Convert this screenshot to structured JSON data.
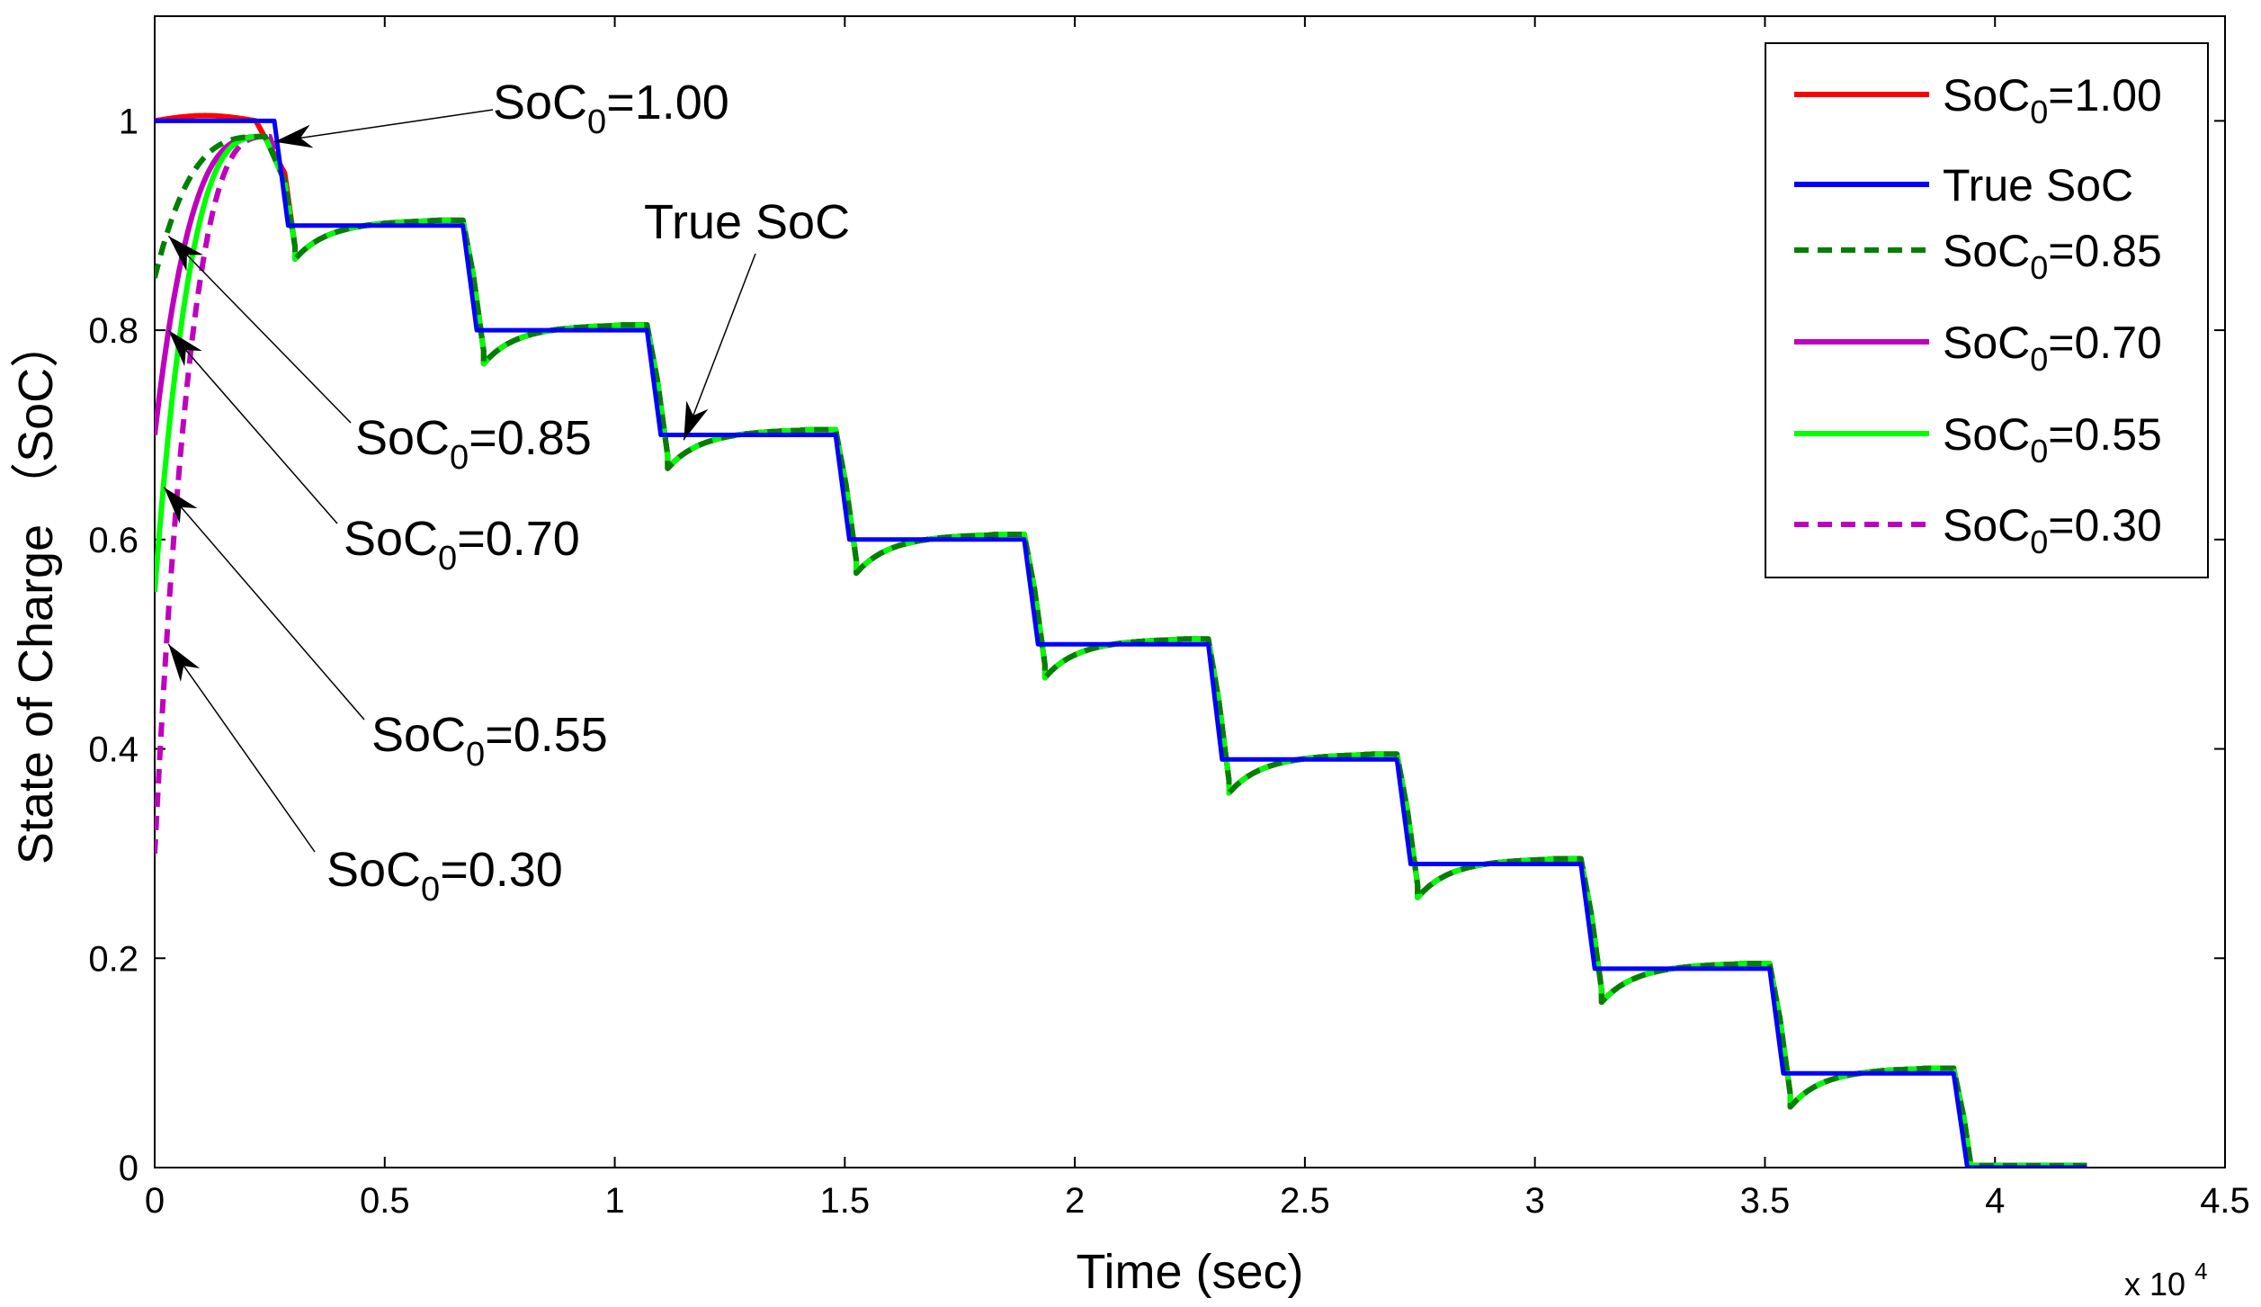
{
  "chart_data": {
    "type": "line",
    "title": "",
    "xlabel": "Time (sec)",
    "ylabel": "State of Charge （SoC）",
    "x_multiplier_label": "x 10",
    "x_multiplier_exp": "4",
    "xlim": [
      0,
      4.5
    ],
    "ylim": [
      0,
      1.1
    ],
    "xticks": [
      0,
      0.5,
      1,
      1.5,
      2,
      2.5,
      3,
      3.5,
      4,
      4.5
    ],
    "xtick_labels": [
      "0",
      "0.5",
      "1",
      "1.5",
      "2",
      "2.5",
      "3",
      "3.5",
      "4",
      "4.5"
    ],
    "yticks": [
      0,
      0.2,
      0.4,
      0.6,
      0.8,
      1
    ],
    "ytick_labels": [
      "0",
      "0.2",
      "0.4",
      "0.6",
      "0.8",
      "1"
    ],
    "grid": false,
    "legend_position": "top-right",
    "steps": [
      {
        "t": 0.26,
        "v": 0.9
      },
      {
        "t": 0.67,
        "v": 0.8
      },
      {
        "t": 1.07,
        "v": 0.7
      },
      {
        "t": 1.48,
        "v": 0.6
      },
      {
        "t": 1.89,
        "v": 0.5
      },
      {
        "t": 2.29,
        "v": 0.39
      },
      {
        "t": 2.7,
        "v": 0.29
      },
      {
        "t": 3.1,
        "v": 0.19
      },
      {
        "t": 3.51,
        "v": 0.09
      },
      {
        "t": 3.91,
        "v": 0.0
      }
    ],
    "true_soc_start": {
      "t": 0.0,
      "v": 1.0
    },
    "end_time": 4.2,
    "series": [
      {
        "name": "SoC0=1.00",
        "legend_base": "SoC",
        "legend_sub": "0",
        "legend_value": "=1.00",
        "color": "#ff0000",
        "dash": "solid",
        "initial": 1.0,
        "peak_t": 0.22
      },
      {
        "name": "True SoC",
        "legend_base": "True SoC",
        "legend_sub": "",
        "legend_value": "",
        "color": "#0000ff",
        "dash": "solid",
        "initial": 1.0,
        "peak_t": 0.0
      },
      {
        "name": "SoC0=0.85",
        "legend_base": "SoC",
        "legend_sub": "0",
        "legend_value": "=0.85",
        "color": "#007f00",
        "dash": "dashed",
        "initial": 0.85,
        "peak_t": 0.24
      },
      {
        "name": "SoC0=0.70",
        "legend_base": "SoC",
        "legend_sub": "0",
        "legend_value": "=0.70",
        "color": "#bf00bf",
        "dash": "solid",
        "initial": 0.7,
        "peak_t": 0.24
      },
      {
        "name": "SoC0=0.55",
        "legend_base": "SoC",
        "legend_sub": "0",
        "legend_value": "=0.55",
        "color": "#00ff00",
        "dash": "solid",
        "initial": 0.55,
        "peak_t": 0.24
      },
      {
        "name": "SoC0=0.30",
        "legend_base": "SoC",
        "legend_sub": "0",
        "legend_value": "=0.30",
        "color": "#bf00bf",
        "dash": "dashed",
        "initial": 0.3,
        "peak_t": 0.25
      }
    ],
    "annotations": [
      {
        "base": "SoC",
        "sub": "0",
        "value": "=1.00",
        "target_t": 0.26,
        "target_v": 0.98
      },
      {
        "base": "True SoC",
        "sub": "",
        "value": "",
        "target_t": 1.15,
        "target_v": 0.695
      },
      {
        "base": "SoC",
        "sub": "0",
        "value": "=0.85",
        "target_t": 0.03,
        "target_v": 0.89
      },
      {
        "base": "SoC",
        "sub": "0",
        "value": "=0.70",
        "target_t": 0.03,
        "target_v": 0.8
      },
      {
        "base": "SoC",
        "sub": "0",
        "value": "=0.55",
        "target_t": 0.02,
        "target_v": 0.65
      },
      {
        "base": "SoC",
        "sub": "0",
        "value": "=0.30",
        "target_t": 0.03,
        "target_v": 0.5
      }
    ]
  }
}
